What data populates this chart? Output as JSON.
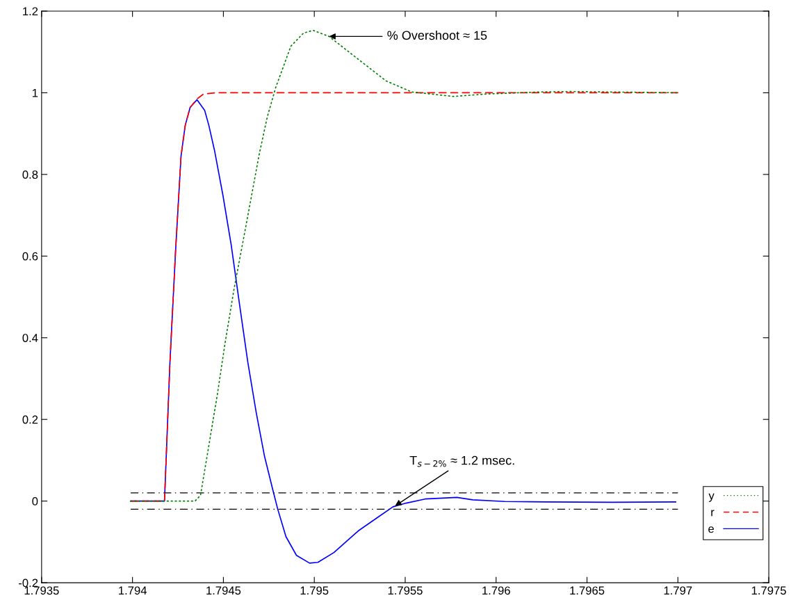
{
  "chart_data": {
    "type": "line",
    "xlim": [
      1.7935,
      1.7975
    ],
    "xticks": [
      1.7935,
      1.794,
      1.7945,
      1.795,
      1.7955,
      1.796,
      1.7965,
      1.797,
      1.7975
    ],
    "ylim": [
      -0.2,
      1.2
    ],
    "yticks": [
      -0.2,
      0,
      0.2,
      0.4,
      0.6,
      0.8,
      1,
      1.2
    ],
    "grid": false,
    "legend": "bottom right",
    "marker": "none",
    "series": [
      {
        "name": "y",
        "color": "#008000",
        "line_style": "dotted",
        "x": [
          1.79399,
          1.794344,
          1.794374,
          1.79442,
          1.794466,
          1.794512,
          1.794558,
          1.794604,
          1.79465,
          1.794695,
          1.794741,
          1.794787,
          1.794871,
          1.79494,
          1.794993,
          1.795081,
          1.795219,
          1.795395,
          1.795536,
          1.795765,
          1.795949,
          1.796243,
          1.796407,
          1.79661,
          1.797
        ],
        "values": [
          0,
          0,
          0.014,
          0.136,
          0.259,
          0.395,
          0.518,
          0.627,
          0.736,
          0.845,
          0.94,
          1.012,
          1.114,
          1.146,
          1.153,
          1.138,
          1.09,
          1.029,
          1.002,
          0.991,
          0.997,
          1.002,
          1.003,
          1.002,
          1.0
        ]
      },
      {
        "name": "r",
        "color": "#ff0000",
        "line_style": "dashed",
        "x": [
          1.79399,
          1.794176,
          1.794206,
          1.794237,
          1.794267,
          1.79429,
          1.794317,
          1.794355,
          1.794391,
          1.79446,
          1.797
        ],
        "values": [
          0,
          0,
          0.34,
          0.613,
          0.845,
          0.92,
          0.964,
          0.985,
          0.997,
          1.0,
          1.0
        ]
      },
      {
        "name": "e",
        "color": "#0000ff",
        "line_style": "solid",
        "x": [
          1.79399,
          1.794176,
          1.794206,
          1.794237,
          1.794267,
          1.79429,
          1.794317,
          1.794355,
          1.794397,
          1.79442,
          1.794451,
          1.794497,
          1.794543,
          1.794588,
          1.794634,
          1.79468,
          1.794726,
          1.794772,
          1.794799,
          1.794844,
          1.794902,
          1.794974,
          1.79502,
          1.795108,
          1.795242,
          1.795345,
          1.795433,
          1.795505,
          1.795609,
          1.795784,
          1.795872,
          1.796048,
          1.79627,
          1.796636,
          1.796988
        ],
        "values": [
          0,
          0,
          0.34,
          0.613,
          0.845,
          0.92,
          0.964,
          0.983,
          0.957,
          0.92,
          0.859,
          0.75,
          0.627,
          0.484,
          0.341,
          0.218,
          0.11,
          0.027,
          -0.02,
          -0.087,
          -0.133,
          -0.152,
          -0.15,
          -0.126,
          -0.073,
          -0.041,
          -0.014,
          -0.005,
          0.005,
          0.009,
          0.003,
          -0.001,
          -0.002,
          -0.003,
          -0.002
        ]
      }
    ],
    "ref_lines": [
      {
        "axis": "y",
        "value": 0.02,
        "color": "#000000",
        "line_style": "dashdot"
      },
      {
        "axis": "y",
        "value": -0.02,
        "color": "#000000",
        "line_style": "dashdot"
      }
    ],
    "annotations": [
      {
        "text": "% Overshoot ≈ 15",
        "x": 1.795081,
        "y": 1.138
      },
      {
        "text": "T$_{s−2%}$ ≈ 1.2 msec.",
        "x": 1.795444,
        "y": -0.012
      }
    ]
  }
}
